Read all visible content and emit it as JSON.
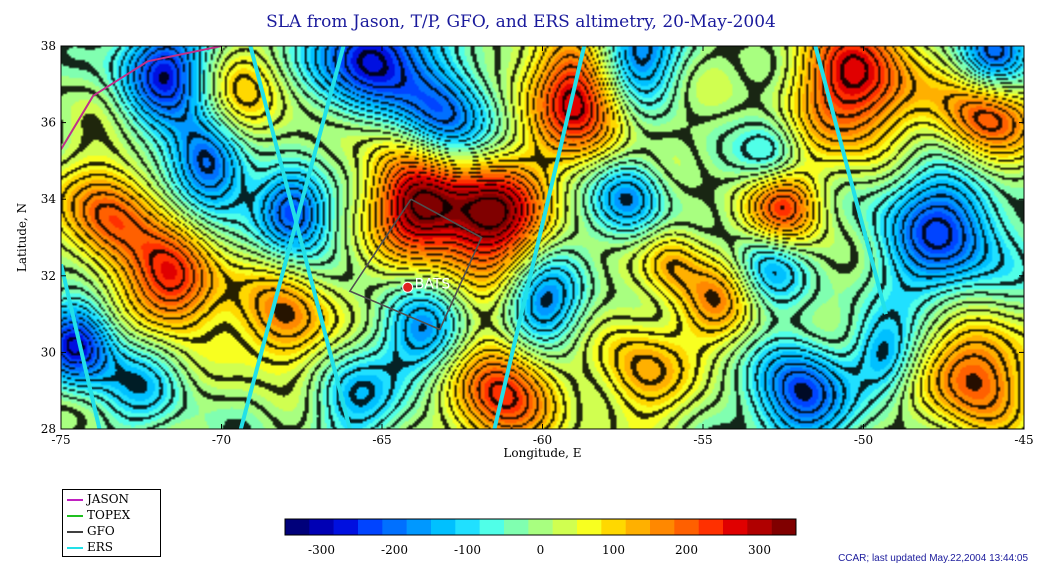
{
  "title": "SLA from Jason, T/P, GFO, and ERS altimetry, 20-May-2004",
  "map": {
    "xlabel": "Longitude, E",
    "ylabel": "Latitude, N",
    "xlim": [
      -75,
      -45
    ],
    "ylim": [
      28,
      38
    ],
    "xticks": [
      -75,
      -70,
      -65,
      -60,
      -55,
      -50,
      -45
    ],
    "xtick_labels": [
      "-75",
      "-70",
      "-65",
      "-60",
      "-55",
      "-50",
      "-45"
    ],
    "yticks": [
      28,
      30,
      32,
      34,
      36,
      38
    ],
    "ytick_labels": [
      "28",
      "30",
      "32",
      "34",
      "36",
      "38"
    ],
    "station": {
      "name": "BATS",
      "lon": -64.2,
      "lat": 31.7,
      "color": "#e02020"
    },
    "region_box": [
      [
        -64.1,
        34.0
      ],
      [
        -61.9,
        33.0
      ],
      [
        -63.2,
        30.6
      ],
      [
        -66.0,
        31.6
      ],
      [
        -64.1,
        34.0
      ]
    ],
    "eddies": [
      {
        "lon": -63.8,
        "lat": 33.9,
        "sla": 310,
        "r": 1.0
      },
      {
        "lon": -61.6,
        "lat": 33.6,
        "sla": 340,
        "r": 1.1
      },
      {
        "lon": -58.7,
        "lat": 36.9,
        "sla": 330,
        "r": 1.2
      },
      {
        "lon": -50.2,
        "lat": 37.0,
        "sla": 280,
        "r": 1.3
      },
      {
        "lon": -46.2,
        "lat": 36.1,
        "sla": 260,
        "r": 1.0
      },
      {
        "lon": -64.4,
        "lat": 36.0,
        "sla": 180,
        "r": 1.3
      },
      {
        "lon": -71.5,
        "lat": 31.8,
        "sla": 260,
        "r": 1.0
      },
      {
        "lon": -73.5,
        "lat": 33.6,
        "sla": 210,
        "r": 1.0
      },
      {
        "lon": -68.0,
        "lat": 30.8,
        "sla": 180,
        "r": 1.0
      },
      {
        "lon": -61.3,
        "lat": 29.0,
        "sla": 250,
        "r": 1.1
      },
      {
        "lon": -52.5,
        "lat": 33.8,
        "sla": 250,
        "r": 0.8
      },
      {
        "lon": -46.5,
        "lat": 29.5,
        "sla": 230,
        "r": 1.1
      },
      {
        "lon": -57.0,
        "lat": 29.5,
        "sla": 140,
        "r": 1.0
      },
      {
        "lon": -69.5,
        "lat": 36.2,
        "sla": 150,
        "r": 1.0
      },
      {
        "lon": -54.5,
        "lat": 31.3,
        "sla": 140,
        "r": 0.9
      },
      {
        "lon": -56.0,
        "lat": 32.4,
        "sla": 120,
        "r": 0.7
      },
      {
        "lon": -65.3,
        "lat": 37.6,
        "sla": -340,
        "r": 1.2
      },
      {
        "lon": -63.2,
        "lat": 36.0,
        "sla": -320,
        "r": 1.1
      },
      {
        "lon": -57.4,
        "lat": 37.7,
        "sla": -300,
        "r": 1.0
      },
      {
        "lon": -71.8,
        "lat": 37.4,
        "sla": -250,
        "r": 1.0
      },
      {
        "lon": -70.4,
        "lat": 35.1,
        "sla": -280,
        "r": 0.9
      },
      {
        "lon": -67.8,
        "lat": 33.7,
        "sla": -260,
        "r": 0.8
      },
      {
        "lon": -47.5,
        "lat": 33.2,
        "sla": -220,
        "r": 1.5
      },
      {
        "lon": -46.0,
        "lat": 37.8,
        "sla": -250,
        "r": 0.8
      },
      {
        "lon": -74.5,
        "lat": 30.2,
        "sla": -260,
        "r": 0.8
      },
      {
        "lon": -52.0,
        "lat": 28.9,
        "sla": -240,
        "r": 1.0
      },
      {
        "lon": -60.0,
        "lat": 31.2,
        "sla": -190,
        "r": 0.9
      },
      {
        "lon": -57.3,
        "lat": 34.0,
        "sla": -170,
        "r": 0.8
      },
      {
        "lon": -63.6,
        "lat": 30.4,
        "sla": -160,
        "r": 0.9
      },
      {
        "lon": -53.0,
        "lat": 32.3,
        "sla": -150,
        "r": 0.8
      },
      {
        "lon": -49.3,
        "lat": 29.8,
        "sla": -130,
        "r": 0.7
      },
      {
        "lon": -52.8,
        "lat": 35.1,
        "sla": -130,
        "r": 0.7
      },
      {
        "lon": -66.0,
        "lat": 28.8,
        "sla": -120,
        "r": 1.0
      },
      {
        "lon": -72.5,
        "lat": 29.2,
        "sla": -100,
        "r": 1.0
      }
    ],
    "tracks": [
      {
        "mission": "ERS",
        "color": "#22e0e8",
        "points": [
          [
            -69.4,
            28
          ],
          [
            -66.2,
            38
          ]
        ]
      },
      {
        "mission": "ERS",
        "color": "#22e0e8",
        "points": [
          [
            -66.0,
            28
          ],
          [
            -69.1,
            38
          ]
        ]
      },
      {
        "mission": "ERS",
        "color": "#22e0e8",
        "points": [
          [
            -61.5,
            28
          ],
          [
            -58.7,
            38
          ]
        ]
      },
      {
        "mission": "ERS",
        "color": "#22e0e8",
        "points": [
          [
            -49.3,
            31.0
          ],
          [
            -51.5,
            38
          ]
        ]
      },
      {
        "mission": "ERS",
        "color": "#22e0e8",
        "points": [
          [
            -75,
            32.3
          ],
          [
            -73.8,
            28
          ]
        ]
      },
      {
        "mission": "JASON",
        "color": "#c0308a",
        "points": [
          [
            -75,
            35.3
          ],
          [
            -74.0,
            36.7
          ],
          [
            -72.3,
            37.6
          ],
          [
            -70.0,
            38
          ]
        ]
      },
      {
        "mission": "GFO",
        "color": "#505050",
        "points": [
          [
            -64.1,
            34.0
          ],
          [
            -61.9,
            33.0
          ],
          [
            -63.2,
            30.6
          ],
          [
            -66.0,
            31.6
          ],
          [
            -64.1,
            34.0
          ]
        ]
      }
    ]
  },
  "legend": {
    "items": [
      {
        "label": "JASON",
        "color": "#c020c0"
      },
      {
        "label": "TOPEX",
        "color": "#20c020"
      },
      {
        "label": "GFO",
        "color": "#404040"
      },
      {
        "label": "ERS",
        "color": "#22e0e8"
      }
    ]
  },
  "colorbar": {
    "min": -350,
    "max": 350,
    "colors": [
      "#00007a",
      "#0000b4",
      "#0010e0",
      "#0044ff",
      "#0070ff",
      "#0098ff",
      "#00c0ff",
      "#20e0ff",
      "#50ffe8",
      "#80ffb0",
      "#a8ff80",
      "#d0ff50",
      "#f8ff20",
      "#ffd800",
      "#ffb000",
      "#ff8800",
      "#ff6000",
      "#ff3000",
      "#e00000",
      "#b00000",
      "#800000"
    ],
    "ticks": [
      -300,
      -200,
      -100,
      0,
      100,
      200,
      300
    ],
    "tick_labels": [
      "-300",
      "-200",
      "-100",
      "0",
      "100",
      "200",
      "300"
    ]
  },
  "credit": "CCAR; last updated May.22,2004 13:44:05"
}
